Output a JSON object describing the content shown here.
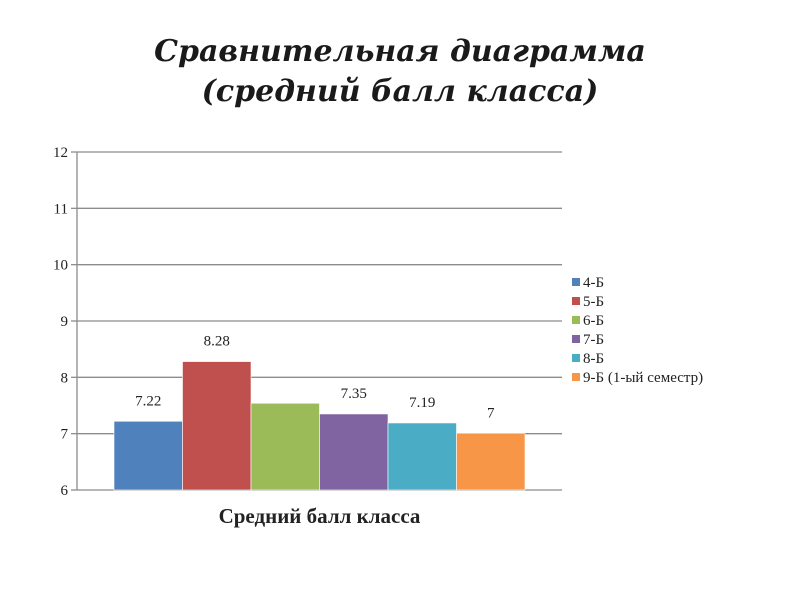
{
  "slide": {
    "title_line1": "Сравнительная диаграмма",
    "title_line2": "(средний балл класса)"
  },
  "chart_data": {
    "type": "bar",
    "categories": [
      "Средний балл класса"
    ],
    "series": [
      {
        "name": "4-Б",
        "values": [
          7.22
        ],
        "label": "7.22",
        "color": "#4f81bd"
      },
      {
        "name": "5-Б",
        "values": [
          8.28
        ],
        "label": "8.28",
        "color": "#c0504d"
      },
      {
        "name": "6-Б",
        "values": [
          7.54
        ],
        "label": "",
        "color": "#9bbb59"
      },
      {
        "name": "7-Б",
        "values": [
          7.35
        ],
        "label": "7.35",
        "color": "#8064a2"
      },
      {
        "name": "8-Б",
        "values": [
          7.19
        ],
        "label": "7.19",
        "color": "#4bacc6"
      },
      {
        "name": "9-Б (1-ый семестр)",
        "values": [
          7
        ],
        "label": "7",
        "color": "#f79646"
      }
    ],
    "xlabel": "Средний балл класса",
    "ylabel": "",
    "ylim": [
      6,
      12
    ],
    "yticks": [
      "6",
      "7",
      "8",
      "9",
      "10",
      "11",
      "12"
    ],
    "grid": true,
    "legend_position": "right"
  }
}
